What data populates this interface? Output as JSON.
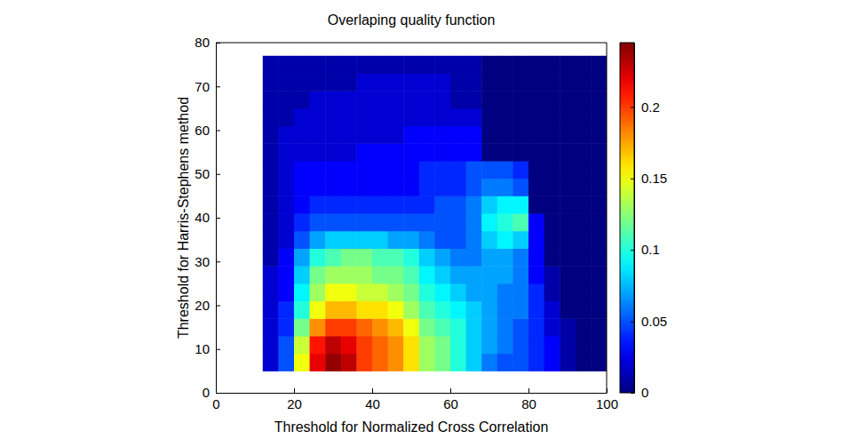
{
  "chart_data": {
    "type": "heatmap",
    "title": "Overlaping quality function",
    "x_label": "Threshold for Normalized Cross Correlation",
    "y_label": "Threshold for Harris-Stephens method",
    "xlim": [
      0,
      100
    ],
    "ylim": [
      0,
      80
    ],
    "xticks": [
      0,
      20,
      40,
      60,
      80,
      100
    ],
    "yticks": [
      0,
      10,
      20,
      30,
      40,
      50,
      60,
      70,
      80
    ],
    "x_bins": [
      12,
      16,
      20,
      24,
      28,
      32,
      36,
      40,
      44,
      48,
      52,
      56,
      60,
      64,
      68,
      72,
      76,
      80,
      84,
      88,
      92,
      96,
      100
    ],
    "y_bins": [
      5,
      9,
      13,
      17,
      21,
      25,
      29,
      33,
      37,
      41,
      45,
      49,
      53,
      57,
      61,
      65,
      69,
      73,
      77
    ],
    "cells": [
      [
        0.02,
        0.05,
        0.15,
        0.22,
        0.24,
        0.23,
        0.2,
        0.19,
        0.18,
        0.16,
        0.13,
        0.12,
        0.1,
        0.08,
        0.06,
        0.05,
        0.05,
        0.04,
        0.03,
        0.01,
        0,
        0
      ],
      [
        0.02,
        0.05,
        0.14,
        0.21,
        0.23,
        0.22,
        0.2,
        0.19,
        0.18,
        0.16,
        0.13,
        0.12,
        0.1,
        0.08,
        0.07,
        0.06,
        0.05,
        0.04,
        0.03,
        0.01,
        0,
        0
      ],
      [
        0.02,
        0.04,
        0.12,
        0.18,
        0.2,
        0.2,
        0.19,
        0.18,
        0.17,
        0.15,
        0.12,
        0.11,
        0.1,
        0.08,
        0.07,
        0.06,
        0.05,
        0.04,
        0.02,
        0.01,
        0,
        0
      ],
      [
        0.02,
        0.04,
        0.1,
        0.15,
        0.17,
        0.17,
        0.16,
        0.16,
        0.15,
        0.13,
        0.11,
        0.1,
        0.09,
        0.08,
        0.07,
        0.06,
        0.06,
        0.04,
        0.02,
        0,
        0,
        0
      ],
      [
        0.02,
        0.03,
        0.09,
        0.13,
        0.15,
        0.15,
        0.14,
        0.14,
        0.13,
        0.12,
        0.1,
        0.09,
        0.08,
        0.07,
        0.07,
        0.06,
        0.06,
        0.04,
        0.01,
        0,
        0,
        0
      ],
      [
        0.02,
        0.03,
        0.08,
        0.12,
        0.13,
        0.13,
        0.13,
        0.12,
        0.12,
        0.11,
        0.09,
        0.08,
        0.07,
        0.07,
        0.07,
        0.07,
        0.06,
        0.03,
        0.01,
        0,
        0,
        0
      ],
      [
        0.01,
        0.03,
        0.07,
        0.1,
        0.11,
        0.12,
        0.12,
        0.11,
        0.11,
        0.1,
        0.08,
        0.07,
        0.06,
        0.06,
        0.07,
        0.07,
        0.06,
        0.03,
        0,
        0,
        0,
        0
      ],
      [
        0.01,
        0.02,
        0.05,
        0.07,
        0.08,
        0.08,
        0.08,
        0.08,
        0.07,
        0.07,
        0.06,
        0.05,
        0.05,
        0.06,
        0.08,
        0.09,
        0.08,
        0.03,
        0,
        0,
        0,
        0
      ],
      [
        0.01,
        0.02,
        0.04,
        0.05,
        0.05,
        0.05,
        0.05,
        0.05,
        0.05,
        0.05,
        0.05,
        0.05,
        0.05,
        0.06,
        0.09,
        0.1,
        0.11,
        0.03,
        0,
        0,
        0,
        0
      ],
      [
        0.01,
        0.02,
        0.03,
        0.04,
        0.04,
        0.04,
        0.04,
        0.04,
        0.04,
        0.04,
        0.04,
        0.05,
        0.05,
        0.06,
        0.08,
        0.09,
        0.09,
        0,
        0,
        0,
        0,
        0
      ],
      [
        0.01,
        0.02,
        0.03,
        0.03,
        0.03,
        0.03,
        0.03,
        0.03,
        0.03,
        0.03,
        0.04,
        0.04,
        0.04,
        0.05,
        0.06,
        0.06,
        0.05,
        0,
        0,
        0,
        0,
        0
      ],
      [
        0.01,
        0.02,
        0.03,
        0.03,
        0.03,
        0.03,
        0.03,
        0.03,
        0.03,
        0.03,
        0.04,
        0.04,
        0.04,
        0.05,
        0.05,
        0.05,
        0.04,
        0,
        0,
        0,
        0,
        0
      ],
      [
        0.01,
        0.02,
        0.02,
        0.02,
        0.02,
        0.02,
        0.03,
        0.03,
        0.03,
        0.03,
        0.03,
        0.03,
        0.03,
        0.03,
        0,
        0,
        0,
        0,
        0,
        0,
        0,
        0
      ],
      [
        0.01,
        0.02,
        0.02,
        0.02,
        0.02,
        0.02,
        0.02,
        0.02,
        0.02,
        0.03,
        0.03,
        0.03,
        0.03,
        0.03,
        0,
        0,
        0,
        0,
        0,
        0,
        0,
        0
      ],
      [
        0.01,
        0.01,
        0.02,
        0.02,
        0.02,
        0.02,
        0.02,
        0.02,
        0.02,
        0.02,
        0.02,
        0.02,
        0.02,
        0.02,
        0,
        0,
        0,
        0,
        0,
        0,
        0,
        0
      ],
      [
        0.01,
        0.01,
        0.01,
        0.02,
        0.02,
        0.02,
        0.02,
        0.02,
        0.02,
        0.02,
        0.02,
        0.02,
        0.01,
        0.01,
        0,
        0,
        0,
        0,
        0,
        0,
        0,
        0
      ],
      [
        0.01,
        0.01,
        0.01,
        0.01,
        0.01,
        0.01,
        0.02,
        0.02,
        0.02,
        0.02,
        0.02,
        0.02,
        0.01,
        0.01,
        0,
        0,
        0,
        0,
        0,
        0,
        0,
        0
      ],
      [
        0.01,
        0.01,
        0.01,
        0.01,
        0.01,
        0.01,
        0.01,
        0.01,
        0.01,
        0.01,
        0.01,
        0.01,
        0.01,
        0.01,
        0,
        0,
        0,
        0,
        0,
        0,
        0,
        0
      ]
    ],
    "colorbar": {
      "range": [
        0,
        0.245
      ],
      "ticks": [
        0,
        0.05,
        0.1,
        0.15,
        0.2
      ]
    }
  }
}
